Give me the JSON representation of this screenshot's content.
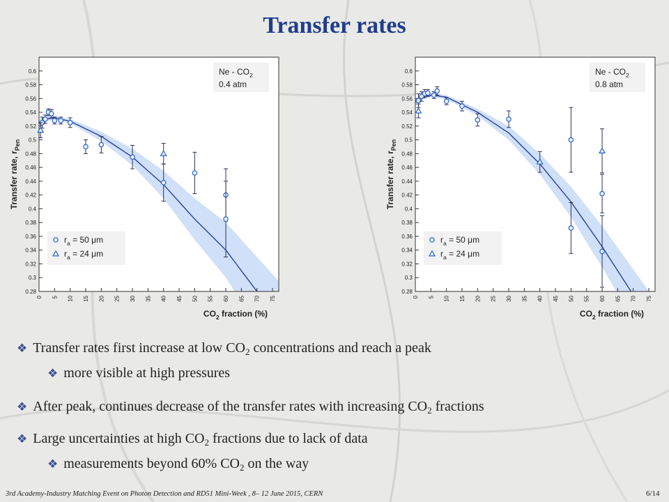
{
  "slide": {
    "title": "Transfer rates",
    "footer": "3rd Academy-Industry Matching Event on Photon Detection and RD51 Mini-Week , 8– 12 June 2015, CERN",
    "page": "6/14"
  },
  "bullets": [
    {
      "pre": "Transfer rates first increase at low CO",
      "sub": "2",
      "post": " concentrations and reach a peak",
      "level": 1
    },
    {
      "pre": "more visible at high pressures",
      "sub": "",
      "post": "",
      "level": 2
    },
    {
      "pre": "After peak, continues decrease of the transfer rates with increasing CO",
      "sub": "2",
      "post": " fractions",
      "level": 1
    },
    {
      "pre": "Large uncertainties at high CO",
      "sub": "2",
      "post": " fractions due to lack of data",
      "level": 1
    },
    {
      "pre": "measurements beyond 60% CO",
      "sub": "2",
      "post": " on the way",
      "level": 2
    }
  ],
  "colors": {
    "accent": "#1f3d8a",
    "band": "#cfe0f8",
    "curve": "#2a3f9c",
    "marker": "#2a64c8",
    "bullet_mark": "#3b4f91"
  },
  "chart_data": [
    {
      "type": "scatter",
      "legend_title": "Ne - CO2",
      "legend_sub": "0.4 atm",
      "xlabel": "CO2 fraction (%)",
      "ylabel": "Transfer rate, rPen",
      "xlim": [
        0,
        77
      ],
      "ylim": [
        0.28,
        0.62
      ],
      "xticks": [
        0,
        5,
        10,
        15,
        20,
        25,
        30,
        35,
        40,
        45,
        50,
        55,
        60,
        65,
        70,
        75
      ],
      "yticks": [
        0.28,
        0.3,
        0.32,
        0.34,
        0.36,
        0.38,
        0.4,
        0.42,
        0.44,
        0.46,
        0.48,
        0.5,
        0.52,
        0.54,
        0.56,
        0.58,
        0.6
      ],
      "fit": {
        "x": [
          0,
          2,
          5,
          10,
          20,
          30,
          40,
          50,
          60,
          70
        ],
        "y": [
          0.525,
          0.53,
          0.532,
          0.527,
          0.505,
          0.475,
          0.435,
          0.385,
          0.34,
          0.28
        ],
        "band_halfwidth": [
          0.004,
          0.003,
          0.003,
          0.003,
          0.007,
          0.012,
          0.02,
          0.03,
          0.04,
          0.05
        ]
      },
      "series": [
        {
          "name": "r_a = 50 μm",
          "marker": "circle",
          "x": [
            1,
            2,
            3,
            4,
            5,
            7,
            10,
            15,
            20,
            30,
            40,
            50,
            60,
            60
          ],
          "y": [
            0.525,
            0.53,
            0.54,
            0.538,
            0.528,
            0.528,
            0.525,
            0.49,
            0.493,
            0.475,
            0.438,
            0.452,
            0.42,
            0.385
          ],
          "err": [
            0.008,
            0.006,
            0.005,
            0.006,
            0.005,
            0.005,
            0.007,
            0.01,
            0.012,
            0.017,
            0.027,
            0.03,
            0.038,
            0.055
          ]
        },
        {
          "name": "r_a = 24 μm",
          "marker": "triangle",
          "x": [
            0.5,
            40
          ],
          "y": [
            0.514,
            0.48
          ],
          "err": [
            0.011,
            0.015
          ]
        }
      ],
      "legend_entries": [
        {
          "pre": "r",
          "sub": "a",
          "post": " = 50 μm"
        },
        {
          "pre": "r",
          "sub": "a",
          "post": " = 24 μm"
        }
      ]
    },
    {
      "type": "scatter",
      "legend_title": "Ne - CO2",
      "legend_sub": "0.8 atm",
      "xlabel": "CO2 fraction (%)",
      "ylabel": "Transfer rate, rPen",
      "xlim": [
        0,
        77
      ],
      "ylim": [
        0.28,
        0.62
      ],
      "xticks": [
        0,
        5,
        10,
        15,
        20,
        25,
        30,
        35,
        40,
        45,
        50,
        55,
        60,
        65,
        70,
        75
      ],
      "yticks": [
        0.28,
        0.3,
        0.32,
        0.34,
        0.36,
        0.38,
        0.4,
        0.42,
        0.44,
        0.46,
        0.48,
        0.5,
        0.52,
        0.54,
        0.56,
        0.58,
        0.6
      ],
      "fit": {
        "x": [
          0,
          2,
          5,
          10,
          20,
          30,
          40,
          50,
          60,
          70
        ],
        "y": [
          0.555,
          0.562,
          0.565,
          0.562,
          0.54,
          0.51,
          0.465,
          0.41,
          0.345,
          0.275
        ],
        "band_halfwidth": [
          0.005,
          0.003,
          0.003,
          0.003,
          0.005,
          0.01,
          0.015,
          0.022,
          0.03,
          0.037
        ]
      },
      "series": [
        {
          "name": "r_a = 50 μm",
          "marker": "circle",
          "x": [
            1,
            2,
            3,
            4,
            6,
            7,
            10,
            15,
            20,
            30,
            50,
            50,
            60,
            60
          ],
          "y": [
            0.557,
            0.563,
            0.567,
            0.568,
            0.565,
            0.571,
            0.556,
            0.549,
            0.529,
            0.53,
            0.5,
            0.372,
            0.422,
            0.338
          ],
          "err": [
            0.01,
            0.007,
            0.006,
            0.005,
            0.005,
            0.006,
            0.005,
            0.007,
            0.009,
            0.012,
            0.047,
            0.037,
            0.028,
            0.052
          ]
        },
        {
          "name": "r_a = 24 μm",
          "marker": "triangle",
          "x": [
            1,
            40,
            60
          ],
          "y": [
            0.542,
            0.468,
            0.484
          ],
          "err": [
            0.01,
            0.015,
            0.032
          ]
        }
      ],
      "legend_entries": [
        {
          "pre": "r",
          "sub": "a",
          "post": " = 50 μm"
        },
        {
          "pre": "r",
          "sub": "a",
          "post": " = 24 μm"
        }
      ]
    }
  ]
}
